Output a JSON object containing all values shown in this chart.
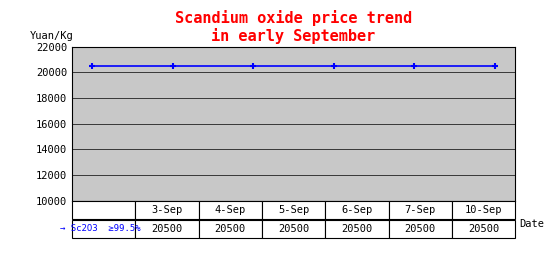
{
  "title_line1": "Scandium oxide price trend",
  "title_line2": "in early September",
  "title_color": "red",
  "title_fontsize": 11,
  "ylabel": "Yuan/Kg",
  "xlabel": "Date",
  "dates": [
    "3-Sep",
    "4-Sep",
    "5-Sep",
    "6-Sep",
    "7-Sep",
    "10-Sep"
  ],
  "series": [
    {
      "label": "→ Sc2O3  ≥99.5%",
      "values": [
        20500,
        20500,
        20500,
        20500,
        20500,
        20500
      ],
      "color": "blue",
      "marker": "+"
    }
  ],
  "ylim": [
    10000,
    22000
  ],
  "yticks": [
    10000,
    12000,
    14000,
    16000,
    18000,
    20000,
    22000
  ],
  "background_color": "#c8c8c8",
  "grid_color": "black",
  "table_values": [
    "20500",
    "20500",
    "20500",
    "20500",
    "20500",
    "20500"
  ],
  "row_label": "→ Sc2O3  ≥99.5%"
}
